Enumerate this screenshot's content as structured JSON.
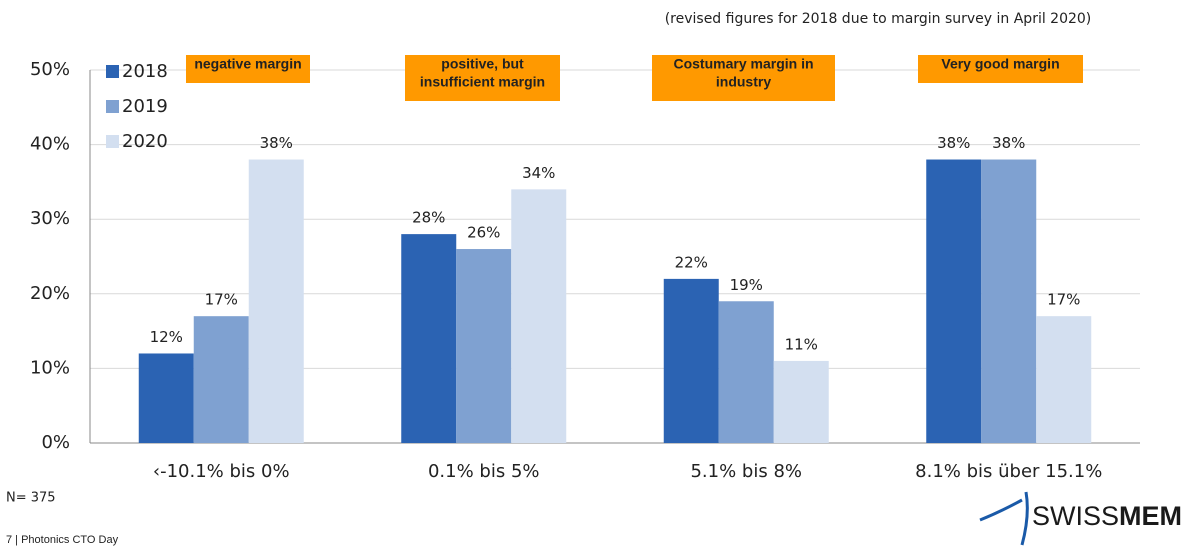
{
  "chart_data": {
    "type": "bar",
    "subtitle": "(revised figures for 2018 due to margin survey in April 2020)",
    "categories": [
      "‹-10.1% bis 0%",
      "0.1% bis 5%",
      "5.1% bis 8%",
      "8.1% bis über 15.1%"
    ],
    "series": [
      {
        "name": "2018",
        "color": "#2b63b3",
        "values": [
          12,
          28,
          22,
          38
        ],
        "value_labels": [
          "12%",
          "28%",
          "22%",
          "38%"
        ]
      },
      {
        "name": "2019",
        "color": "#7fa1d1",
        "values": [
          17,
          26,
          19,
          38
        ],
        "value_labels": [
          "17%",
          "26%",
          "19%",
          "38%"
        ]
      },
      {
        "name": "2020",
        "color": "#d3dff0",
        "values": [
          38,
          34,
          11,
          17
        ],
        "value_labels": [
          "38%",
          "34%",
          "11%",
          "17%"
        ]
      }
    ],
    "ylim": [
      0,
      50
    ],
    "yticks": [
      {
        "value": 0,
        "label": "0%"
      },
      {
        "value": 10,
        "label": "10%"
      },
      {
        "value": 20,
        "label": "20%"
      },
      {
        "value": 30,
        "label": "30%"
      },
      {
        "value": 40,
        "label": "40%"
      },
      {
        "value": 50,
        "label": "50%"
      }
    ],
    "grid": true,
    "legend": "top-left",
    "annotations": [
      {
        "lines": [
          "negative margin"
        ],
        "color": "#ff9900"
      },
      {
        "lines": [
          "positive, but",
          "insufficient margin"
        ],
        "color": "#ff9900"
      },
      {
        "lines": [
          "Costumary margin in",
          "industry"
        ],
        "color": "#ff9900"
      },
      {
        "lines": [
          "Very good margin"
        ],
        "color": "#ff9900"
      }
    ]
  },
  "footnote": "N= 375",
  "footer": "7 | Photonics CTO Day",
  "logo": {
    "light": "SWISS",
    "bold": "MEM"
  }
}
